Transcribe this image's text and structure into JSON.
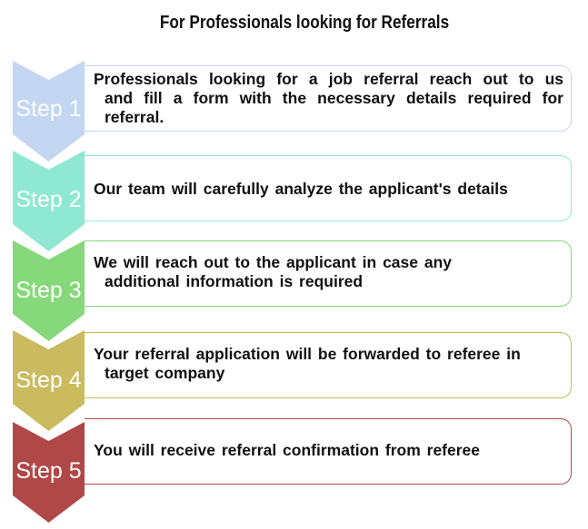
{
  "title": "For Professionals looking for Referrals",
  "steps": [
    {
      "label": "Step 1",
      "color": "#c3d6f2",
      "border": "#c3d6f2",
      "line1": "Professionals looking for a job referral reach out to us",
      "line2": "and fill a form with the necessary details required for",
      "line3": "referral."
    },
    {
      "label": "Step 2",
      "color": "#8ee8d2",
      "border": "#8ee8d2",
      "line1": "Our team will carefully analyze the applicant's details"
    },
    {
      "label": "Step 3",
      "color": "#86d97a",
      "border": "#86d97a",
      "line1": "We will reach out to the applicant in case any",
      "line2": "additional information is required"
    },
    {
      "label": "Step 4",
      "color": "#c9bb5e",
      "border": "#c9bb5e",
      "line1": "Your referral application will be forwarded to referee in",
      "line2": "target company"
    },
    {
      "label": "Step 5",
      "color": "#b04848",
      "border": "#b04848",
      "line1": "You will receive referral confirmation from referee"
    }
  ]
}
